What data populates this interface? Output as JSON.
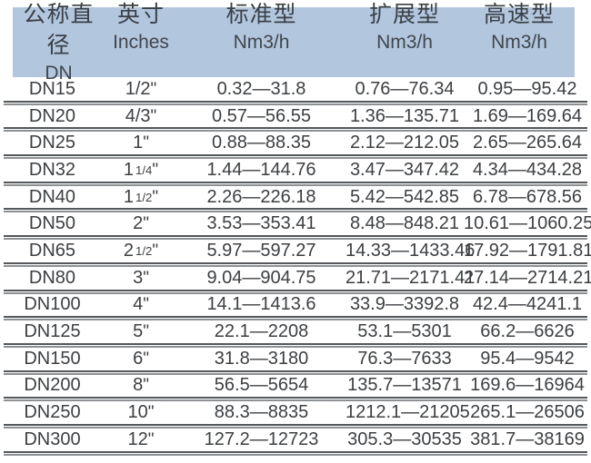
{
  "table": {
    "inch_mark": "\"",
    "header": {
      "columns": [
        {
          "title": "公称直径",
          "subtitle": "DN"
        },
        {
          "title": "英寸",
          "subtitle": "Inches"
        },
        {
          "title": "标准型",
          "subtitle": "Nm3/h"
        },
        {
          "title": "扩展型",
          "subtitle": "Nm3/h"
        },
        {
          "title": "高速型",
          "subtitle": "Nm3/h"
        }
      ]
    },
    "rows": [
      {
        "dn": "DN15",
        "inches": "1/2",
        "inches_frac": "",
        "standard": "0.32—31.8",
        "extended": "0.76—76.34",
        "highspeed": "0.95—95.42"
      },
      {
        "dn": "DN20",
        "inches": "4/3",
        "inches_frac": "",
        "standard": "0.57—56.55",
        "extended": "1.36—135.71",
        "highspeed": "1.69—169.64"
      },
      {
        "dn": "DN25",
        "inches": "1",
        "inches_frac": "",
        "standard": "0.88—88.35",
        "extended": "2.12—212.05",
        "highspeed": "2.65—265.64"
      },
      {
        "dn": "DN32",
        "inches": "1",
        "inches_frac": "1/4",
        "standard": "1.44—144.76",
        "extended": "3.47—347.42",
        "highspeed": "4.34—434.28"
      },
      {
        "dn": "DN40",
        "inches": "1",
        "inches_frac": "1/2",
        "standard": "2.26—226.18",
        "extended": "5.42—542.85",
        "highspeed": "6.78—678.56"
      },
      {
        "dn": "DN50",
        "inches": "2",
        "inches_frac": "",
        "standard": "3.53—353.41",
        "extended": "8.48—848.21",
        "highspeed": "10.61—1060.25"
      },
      {
        "dn": "DN65",
        "inches": "2",
        "inches_frac": "1/2",
        "standard": "5.97—597.27",
        "extended": "14.33—1433.46",
        "highspeed": "17.92—1791.81"
      },
      {
        "dn": "DN80",
        "inches": "3",
        "inches_frac": "",
        "standard": "9.04—904.75",
        "extended": "21.71—2171.41",
        "highspeed": "27.14—2714.21"
      },
      {
        "dn": "DN100",
        "inches": "4",
        "inches_frac": "",
        "standard": "14.1—1413.6",
        "extended": "33.9—3392.8",
        "highspeed": "42.4—4241.1"
      },
      {
        "dn": "DN125",
        "inches": "5",
        "inches_frac": "",
        "standard": "22.1—2208",
        "extended": "53.1—5301",
        "highspeed": "66.2—6626"
      },
      {
        "dn": "DN150",
        "inches": "6",
        "inches_frac": "",
        "standard": "31.8—3180",
        "extended": "76.3—7633",
        "highspeed": "95.4—9542"
      },
      {
        "dn": "DN200",
        "inches": "8",
        "inches_frac": "",
        "standard": "56.5—5654",
        "extended": "135.7—13571",
        "highspeed": "169.6—16964"
      },
      {
        "dn": "DN250",
        "inches": "10",
        "inches_frac": "",
        "standard": "88.3—8835",
        "extended": "1212.1—21205",
        "highspeed": "265.1—26506"
      },
      {
        "dn": "DN300",
        "inches": "12",
        "inches_frac": "",
        "standard": "127.2—12723",
        "extended": "305.3—30535",
        "highspeed": "381.7—38169"
      }
    ]
  },
  "colors": {
    "header_bg": "#b2c6de",
    "header_text": "#3a4047",
    "body_text": "#3c3f42",
    "separator_dark": "#54585a",
    "separator_light": "#8d9093",
    "page_bg": "#ffffff"
  }
}
